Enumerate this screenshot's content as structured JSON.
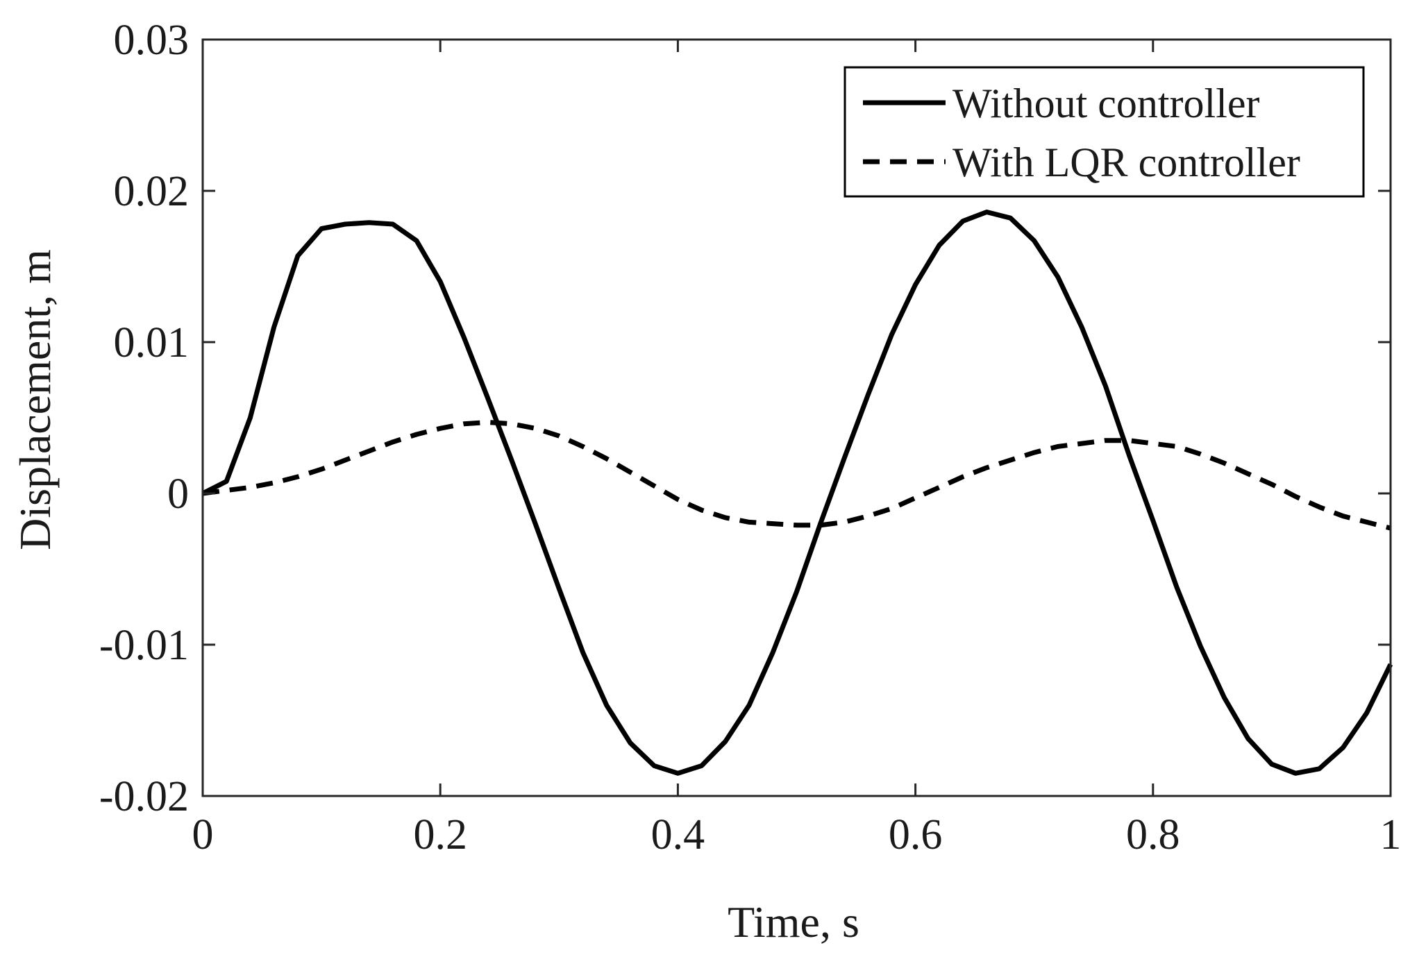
{
  "chart_data": {
    "type": "line",
    "title": "",
    "xlabel": "Time, s",
    "ylabel": "Displacement, m",
    "xlim": [
      0,
      1
    ],
    "ylim": [
      -0.02,
      0.03
    ],
    "grid": false,
    "legend_position": "top-right",
    "xticks": [
      0,
      0.2,
      0.4,
      0.6,
      0.8,
      1
    ],
    "xtick_labels": [
      "0",
      "0.2",
      "0.4",
      "0.6",
      "0.8",
      "1"
    ],
    "yticks": [
      -0.02,
      -0.01,
      0,
      0.01,
      0.02,
      0.03
    ],
    "ytick_labels": [
      "-0.02",
      "-0.01",
      "0",
      "0.01",
      "0.02",
      "0.03"
    ],
    "series": [
      {
        "name": "Without controller",
        "style": "solid",
        "color": "#000000",
        "x": [
          0,
          0.02,
          0.04,
          0.06,
          0.08,
          0.1,
          0.12,
          0.14,
          0.16,
          0.18,
          0.2,
          0.22,
          0.24,
          0.26,
          0.28,
          0.3,
          0.32,
          0.34,
          0.36,
          0.38,
          0.4,
          0.42,
          0.44,
          0.46,
          0.48,
          0.5,
          0.52,
          0.54,
          0.56,
          0.58,
          0.6,
          0.62,
          0.64,
          0.66,
          0.68,
          0.7,
          0.72,
          0.74,
          0.76,
          0.78,
          0.8,
          0.82,
          0.84,
          0.86,
          0.88,
          0.9,
          0.92,
          0.94,
          0.96,
          0.98,
          1.0
        ],
        "y": [
          0,
          0.0008,
          0.005,
          0.011,
          0.0157,
          0.0175,
          0.0178,
          0.0179,
          0.0178,
          0.0167,
          0.014,
          0.0103,
          0.0063,
          0.0022,
          -0.002,
          -0.0063,
          -0.0105,
          -0.014,
          -0.0165,
          -0.018,
          -0.0185,
          -0.018,
          -0.0164,
          -0.014,
          -0.0105,
          -0.0065,
          -0.002,
          0.0023,
          0.0065,
          0.0105,
          0.0138,
          0.0164,
          0.018,
          0.0186,
          0.0182,
          0.0167,
          0.0143,
          0.011,
          0.0071,
          0.0025,
          -0.0018,
          -0.0062,
          -0.0101,
          -0.0135,
          -0.0162,
          -0.0179,
          -0.0185,
          -0.0182,
          -0.0168,
          -0.0145,
          -0.0113
        ]
      },
      {
        "name": "With LQR controller",
        "style": "dashed",
        "color": "#000000",
        "x": [
          0,
          0.02,
          0.04,
          0.06,
          0.08,
          0.1,
          0.12,
          0.14,
          0.16,
          0.18,
          0.2,
          0.22,
          0.24,
          0.26,
          0.28,
          0.3,
          0.32,
          0.34,
          0.36,
          0.38,
          0.4,
          0.42,
          0.44,
          0.46,
          0.48,
          0.5,
          0.52,
          0.54,
          0.56,
          0.58,
          0.6,
          0.62,
          0.64,
          0.66,
          0.68,
          0.7,
          0.72,
          0.74,
          0.76,
          0.78,
          0.8,
          0.82,
          0.84,
          0.86,
          0.88,
          0.9,
          0.92,
          0.94,
          0.96,
          0.98,
          1.0
        ],
        "y": [
          0,
          0.0002,
          0.0004,
          0.0007,
          0.0011,
          0.0016,
          0.0022,
          0.0028,
          0.0034,
          0.0039,
          0.0043,
          0.0046,
          0.0047,
          0.0046,
          0.0043,
          0.0038,
          0.0031,
          0.0023,
          0.0014,
          0.0005,
          -0.0004,
          -0.0011,
          -0.0016,
          -0.0019,
          -0.002,
          -0.0021,
          -0.0021,
          -0.0019,
          -0.0015,
          -0.001,
          -0.0003,
          0.0004,
          0.0011,
          0.0017,
          0.0022,
          0.0027,
          0.0031,
          0.0033,
          0.0035,
          0.0035,
          0.0033,
          0.0031,
          0.0026,
          0.002,
          0.0013,
          0.0006,
          -0.0002,
          -0.0009,
          -0.0015,
          -0.0019,
          -0.0023
        ]
      }
    ]
  }
}
